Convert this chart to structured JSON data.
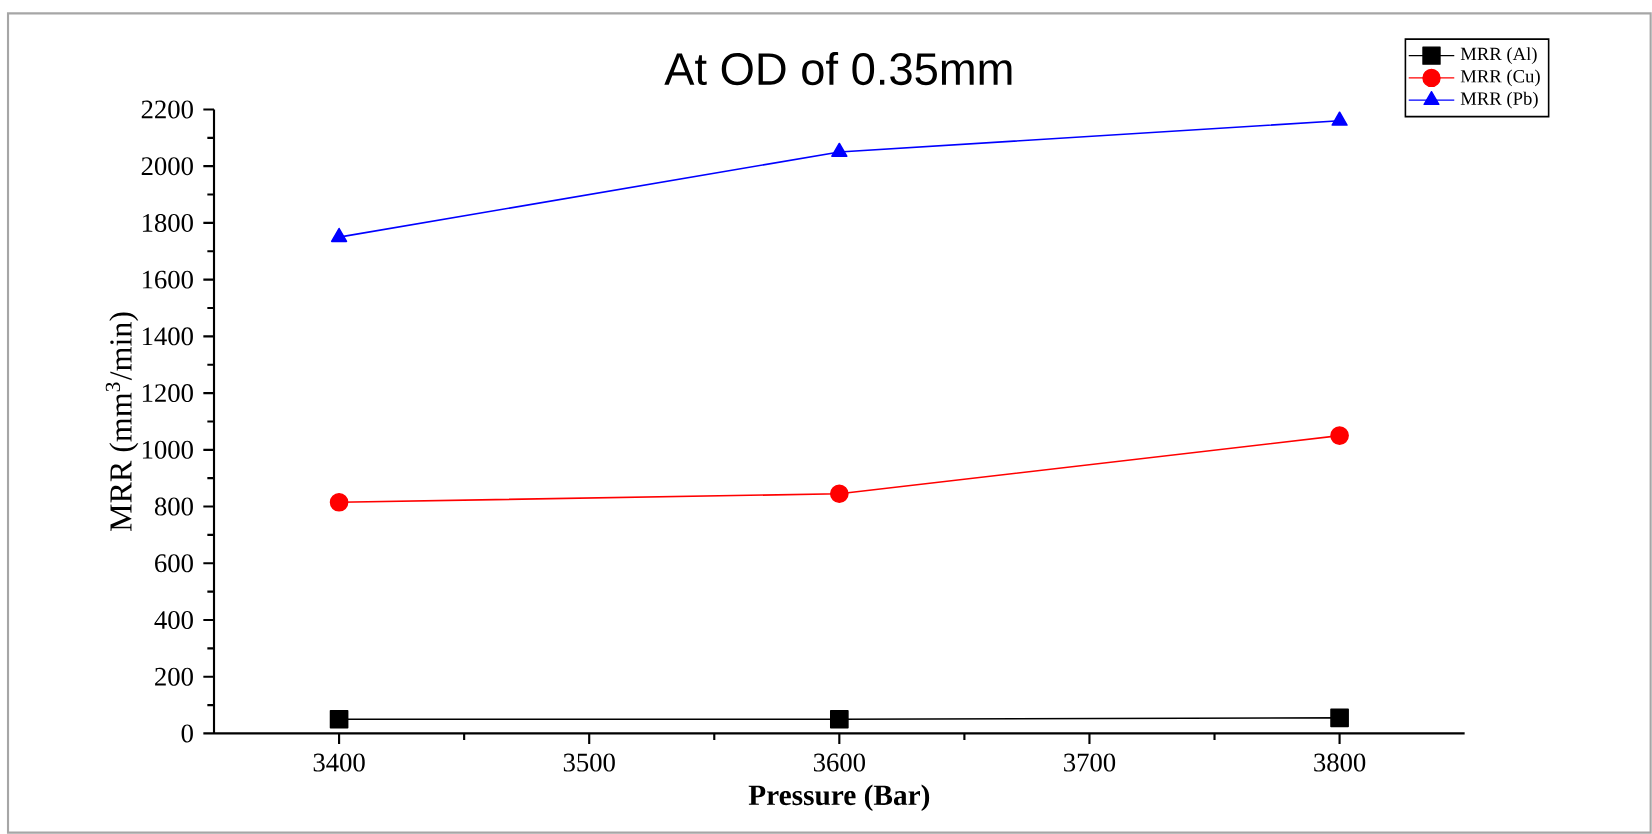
{
  "chart_data": {
    "type": "line",
    "title": "At OD of 0.35mm",
    "xlabel": "Pressure (Bar)",
    "ylabel": "MRR (mm$^{3}$/min)",
    "x": [
      3400,
      3600,
      3800
    ],
    "series": [
      {
        "name": "MRR (Al)",
        "color": "#000000",
        "marker": "square",
        "values": [
          50,
          50,
          55
        ]
      },
      {
        "name": "MRR (Cu)",
        "color": "#ff0000",
        "marker": "circle",
        "values": [
          815,
          845,
          1050
        ]
      },
      {
        "name": "MRR (Pb)",
        "color": "#0000ff",
        "marker": "triangle",
        "values": [
          1750,
          2050,
          2160
        ]
      }
    ],
    "xlim": [
      3350,
      3850
    ],
    "xticks": [
      3400,
      3500,
      3600,
      3700,
      3800
    ],
    "ylim": [
      0,
      2200
    ],
    "yticks": [
      0,
      200,
      400,
      600,
      800,
      1000,
      1200,
      1400,
      1600,
      1800,
      2000,
      2200
    ],
    "grid": false,
    "legend": "top right",
    "line_style": "solid"
  }
}
